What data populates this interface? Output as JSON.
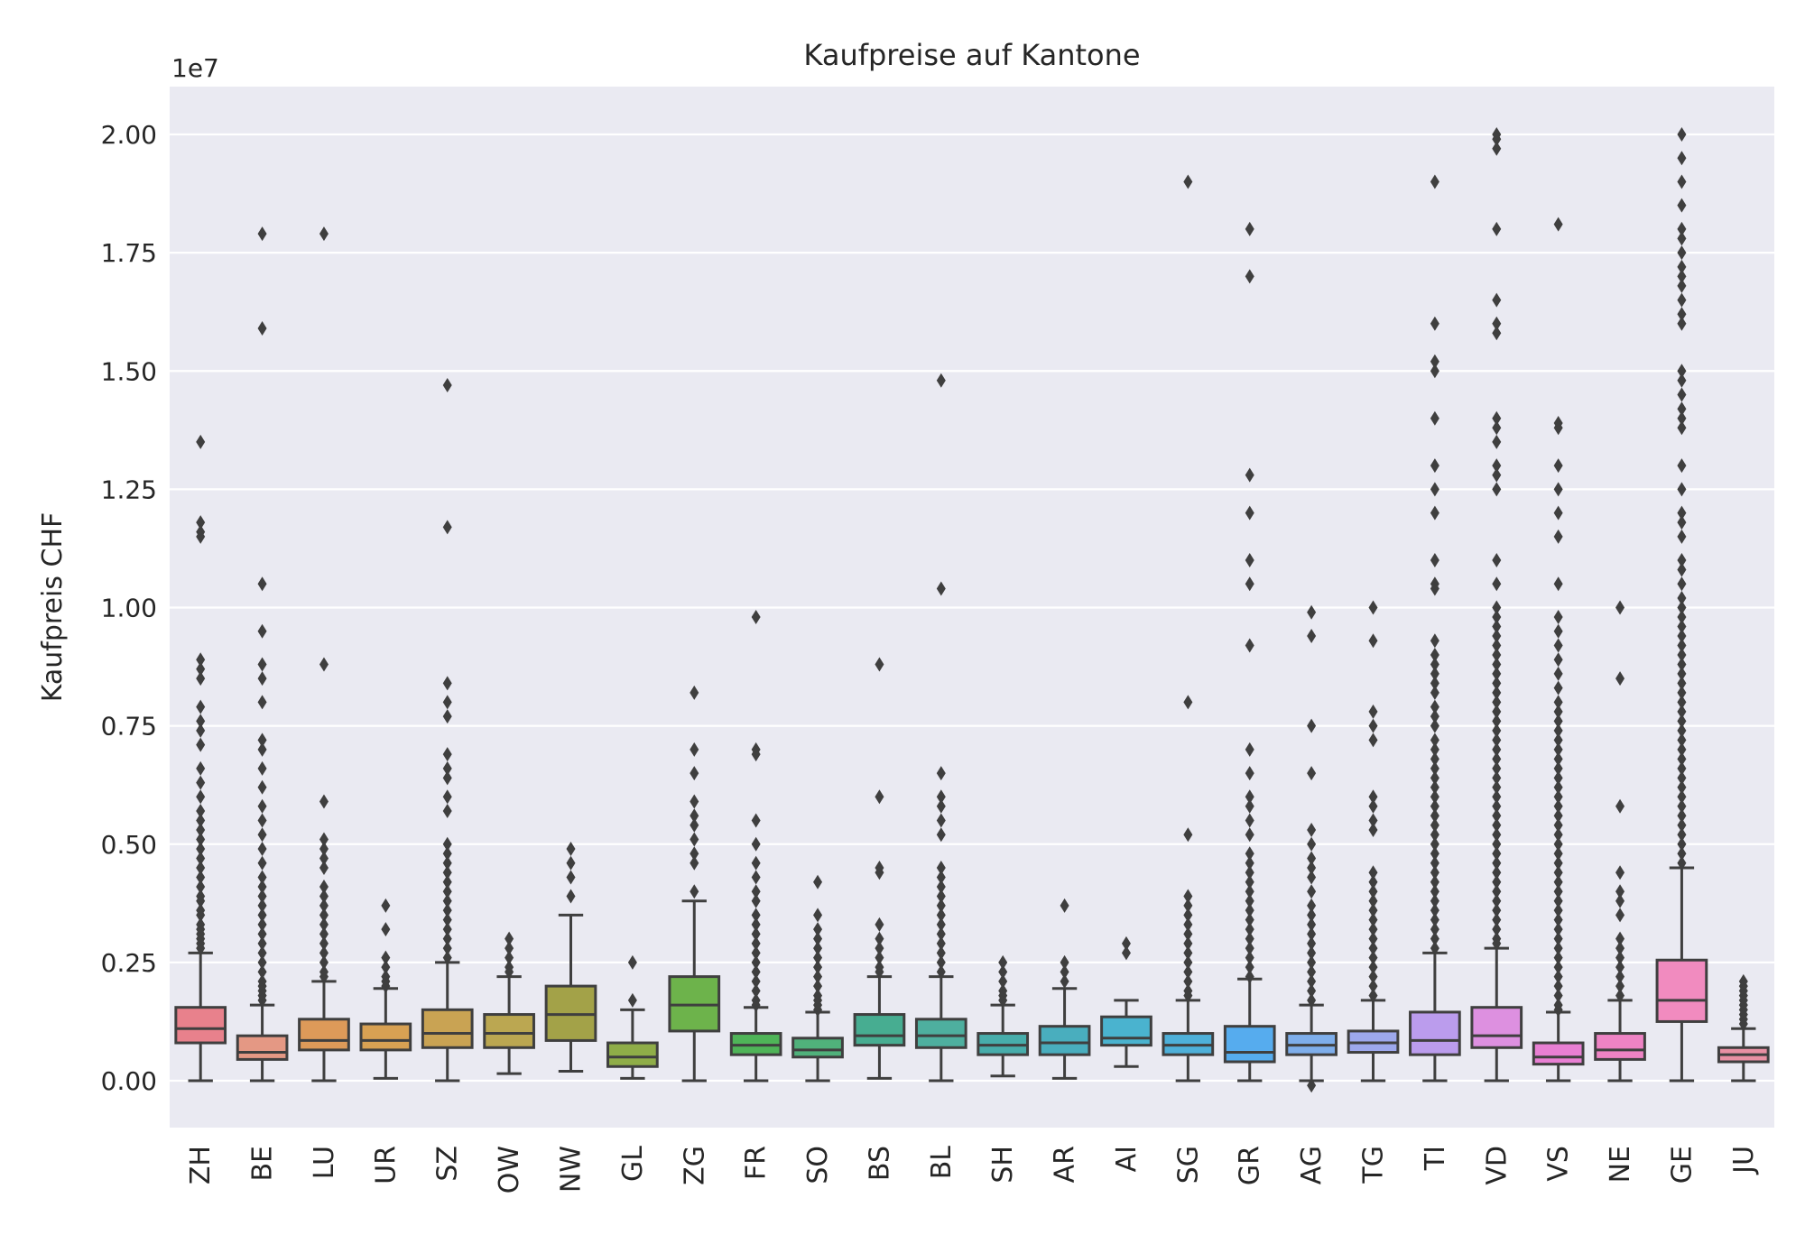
{
  "chart_data": {
    "type": "box",
    "title": "Kaufpreise auf Kantone",
    "ylabel": "Kaufpreis CHF",
    "xlabel": "",
    "offset_label": "1e7",
    "ylim": [
      -0.1,
      2.1
    ],
    "yticks": [
      0.0,
      0.25,
      0.5,
      0.75,
      1.0,
      1.25,
      1.5,
      1.75,
      2.0
    ],
    "ytick_labels": [
      "0.00",
      "0.25",
      "0.50",
      "0.75",
      "1.00",
      "1.25",
      "1.50",
      "1.75",
      "2.00"
    ],
    "grid": true,
    "legend": "none",
    "categories": [
      "ZH",
      "BE",
      "LU",
      "UR",
      "SZ",
      "OW",
      "NW",
      "GL",
      "ZG",
      "FR",
      "SO",
      "BS",
      "BL",
      "SH",
      "AR",
      "AI",
      "SG",
      "GR",
      "AG",
      "TG",
      "TI",
      "VD",
      "VS",
      "NE",
      "GE",
      "JU"
    ],
    "colors": [
      "#e8818c",
      "#e49884",
      "#dd9a59",
      "#d8a153",
      "#c9a353",
      "#bba751",
      "#a3a248",
      "#8fad48",
      "#6db34b",
      "#4fb458",
      "#50b17b",
      "#47ad91",
      "#4eaf9f",
      "#47adab",
      "#49aebe",
      "#4ab3cf",
      "#4eb0d9",
      "#56acee",
      "#7eaeeb",
      "#9da8ec",
      "#bb9ced",
      "#dd90e0",
      "#e87fd3",
      "#ee83c4",
      "#f18bbf",
      "#e890a3"
    ],
    "boxes": [
      {
        "q1": 0.08,
        "median": 0.11,
        "q3": 0.155,
        "whisker_low": 0.0,
        "whisker_high": 0.27,
        "outliers": [
          1.35,
          1.18,
          1.16,
          1.15,
          0.89,
          0.87,
          0.85,
          0.79,
          0.76,
          0.74,
          0.71,
          0.66,
          0.63,
          0.6,
          0.57,
          0.55,
          0.53,
          0.51,
          0.49,
          0.47,
          0.45,
          0.43,
          0.41,
          0.39,
          0.38,
          0.36,
          0.35,
          0.33,
          0.32,
          0.31,
          0.3,
          0.29,
          0.28
        ]
      },
      {
        "q1": 0.045,
        "median": 0.06,
        "q3": 0.095,
        "whisker_low": 0.0,
        "whisker_high": 0.16,
        "outliers": [
          1.79,
          1.59,
          1.05,
          0.95,
          0.88,
          0.85,
          0.8,
          0.72,
          0.7,
          0.66,
          0.62,
          0.58,
          0.55,
          0.52,
          0.49,
          0.46,
          0.43,
          0.41,
          0.39,
          0.37,
          0.35,
          0.33,
          0.31,
          0.29,
          0.27,
          0.25,
          0.23,
          0.21,
          0.2,
          0.19,
          0.18,
          0.17
        ]
      },
      {
        "q1": 0.065,
        "median": 0.085,
        "q3": 0.13,
        "whisker_low": 0.0,
        "whisker_high": 0.21,
        "outliers": [
          1.79,
          0.88,
          0.59,
          0.51,
          0.49,
          0.47,
          0.45,
          0.41,
          0.39,
          0.37,
          0.35,
          0.33,
          0.31,
          0.29,
          0.27,
          0.25,
          0.23,
          0.22
        ]
      },
      {
        "q1": 0.065,
        "median": 0.085,
        "q3": 0.12,
        "whisker_low": 0.005,
        "whisker_high": 0.195,
        "outliers": [
          0.37,
          0.32,
          0.26,
          0.24,
          0.22,
          0.21,
          0.2
        ]
      },
      {
        "q1": 0.07,
        "median": 0.1,
        "q3": 0.15,
        "whisker_low": 0.0,
        "whisker_high": 0.25,
        "outliers": [
          1.47,
          1.17,
          0.84,
          0.8,
          0.77,
          0.69,
          0.66,
          0.64,
          0.6,
          0.57,
          0.5,
          0.48,
          0.46,
          0.44,
          0.42,
          0.4,
          0.38,
          0.36,
          0.34,
          0.32,
          0.3,
          0.28,
          0.26
        ]
      },
      {
        "q1": 0.07,
        "median": 0.1,
        "q3": 0.14,
        "whisker_low": 0.015,
        "whisker_high": 0.22,
        "outliers": [
          0.3,
          0.28,
          0.26,
          0.24,
          0.23
        ]
      },
      {
        "q1": 0.085,
        "median": 0.14,
        "q3": 0.2,
        "whisker_low": 0.02,
        "whisker_high": 0.35,
        "outliers": [
          0.49,
          0.46,
          0.43,
          0.39
        ]
      },
      {
        "q1": 0.03,
        "median": 0.05,
        "q3": 0.08,
        "whisker_low": 0.005,
        "whisker_high": 0.15,
        "outliers": [
          0.25,
          0.17
        ]
      },
      {
        "q1": 0.105,
        "median": 0.16,
        "q3": 0.22,
        "whisker_low": 0.0,
        "whisker_high": 0.38,
        "outliers": [
          0.82,
          0.7,
          0.65,
          0.59,
          0.56,
          0.54,
          0.51,
          0.48,
          0.46,
          0.4
        ]
      },
      {
        "q1": 0.055,
        "median": 0.075,
        "q3": 0.1,
        "whisker_low": 0.0,
        "whisker_high": 0.155,
        "outliers": [
          0.98,
          0.7,
          0.69,
          0.55,
          0.5,
          0.46,
          0.43,
          0.4,
          0.38,
          0.35,
          0.33,
          0.31,
          0.29,
          0.27,
          0.25,
          0.23,
          0.21,
          0.19,
          0.17,
          0.16
        ]
      },
      {
        "q1": 0.05,
        "median": 0.065,
        "q3": 0.09,
        "whisker_low": 0.0,
        "whisker_high": 0.145,
        "outliers": [
          0.42,
          0.35,
          0.32,
          0.3,
          0.28,
          0.26,
          0.24,
          0.22,
          0.2,
          0.18,
          0.17,
          0.16,
          0.15
        ]
      },
      {
        "q1": 0.075,
        "median": 0.095,
        "q3": 0.14,
        "whisker_low": 0.005,
        "whisker_high": 0.22,
        "outliers": [
          0.88,
          0.6,
          0.45,
          0.44,
          0.33,
          0.3,
          0.28,
          0.26,
          0.24,
          0.23
        ]
      },
      {
        "q1": 0.07,
        "median": 0.095,
        "q3": 0.13,
        "whisker_low": 0.0,
        "whisker_high": 0.22,
        "outliers": [
          1.48,
          1.04,
          0.65,
          0.6,
          0.58,
          0.55,
          0.52,
          0.45,
          0.43,
          0.41,
          0.39,
          0.37,
          0.35,
          0.33,
          0.31,
          0.29,
          0.27,
          0.25,
          0.23
        ]
      },
      {
        "q1": 0.055,
        "median": 0.075,
        "q3": 0.1,
        "whisker_low": 0.01,
        "whisker_high": 0.16,
        "outliers": [
          0.25,
          0.23,
          0.21,
          0.19,
          0.18,
          0.17
        ]
      },
      {
        "q1": 0.055,
        "median": 0.08,
        "q3": 0.115,
        "whisker_low": 0.005,
        "whisker_high": 0.195,
        "outliers": [
          0.37,
          0.25,
          0.23,
          0.21
        ]
      },
      {
        "q1": 0.075,
        "median": 0.09,
        "q3": 0.135,
        "whisker_low": 0.03,
        "whisker_high": 0.17,
        "outliers": [
          0.29,
          0.27
        ]
      },
      {
        "q1": 0.055,
        "median": 0.075,
        "q3": 0.1,
        "whisker_low": 0.0,
        "whisker_high": 0.17,
        "outliers": [
          1.9,
          0.8,
          0.52,
          0.39,
          0.37,
          0.35,
          0.33,
          0.31,
          0.29,
          0.27,
          0.25,
          0.23,
          0.21,
          0.19,
          0.18
        ]
      },
      {
        "q1": 0.04,
        "median": 0.06,
        "q3": 0.115,
        "whisker_low": 0.0,
        "whisker_high": 0.215,
        "outliers": [
          1.8,
          1.7,
          1.28,
          1.2,
          1.1,
          1.05,
          0.92,
          0.7,
          0.65,
          0.6,
          0.58,
          0.55,
          0.52,
          0.48,
          0.46,
          0.44,
          0.42,
          0.4,
          0.38,
          0.36,
          0.34,
          0.32,
          0.3,
          0.28,
          0.26,
          0.24,
          0.22
        ]
      },
      {
        "q1": 0.055,
        "median": 0.075,
        "q3": 0.1,
        "whisker_low": 0.0,
        "whisker_high": 0.16,
        "outliers": [
          0.99,
          0.94,
          0.75,
          0.65,
          0.53,
          0.5,
          0.47,
          0.45,
          0.43,
          0.4,
          0.37,
          0.35,
          0.33,
          0.31,
          0.29,
          0.27,
          0.25,
          0.23,
          0.21,
          0.19,
          0.17,
          -0.01
        ]
      },
      {
        "q1": 0.06,
        "median": 0.08,
        "q3": 0.105,
        "whisker_low": 0.0,
        "whisker_high": 0.17,
        "outliers": [
          1.0,
          0.93,
          0.78,
          0.75,
          0.72,
          0.6,
          0.58,
          0.55,
          0.53,
          0.44,
          0.42,
          0.4,
          0.38,
          0.36,
          0.34,
          0.32,
          0.3,
          0.28,
          0.26,
          0.24,
          0.22,
          0.2,
          0.18
        ]
      },
      {
        "q1": 0.055,
        "median": 0.085,
        "q3": 0.145,
        "whisker_low": 0.0,
        "whisker_high": 0.27,
        "outliers": [
          1.9,
          1.6,
          1.52,
          1.5,
          1.4,
          1.3,
          1.25,
          1.2,
          1.1,
          1.05,
          1.04,
          0.93,
          0.9,
          0.88,
          0.86,
          0.84,
          0.82,
          0.79,
          0.77,
          0.75,
          0.72,
          0.7,
          0.68,
          0.66,
          0.64,
          0.62,
          0.6,
          0.58,
          0.56,
          0.54,
          0.52,
          0.5,
          0.48,
          0.46,
          0.44,
          0.42,
          0.4,
          0.38,
          0.36,
          0.34,
          0.32,
          0.3,
          0.28
        ]
      },
      {
        "q1": 0.07,
        "median": 0.095,
        "q3": 0.155,
        "whisker_low": 0.0,
        "whisker_high": 0.28,
        "outliers": [
          2.0,
          1.99,
          1.97,
          1.8,
          1.65,
          1.6,
          1.58,
          1.4,
          1.38,
          1.35,
          1.3,
          1.28,
          1.25,
          1.1,
          1.05,
          1.0,
          0.98,
          0.96,
          0.94,
          0.92,
          0.9,
          0.88,
          0.86,
          0.84,
          0.82,
          0.8,
          0.78,
          0.76,
          0.74,
          0.72,
          0.7,
          0.68,
          0.66,
          0.64,
          0.62,
          0.6,
          0.58,
          0.56,
          0.54,
          0.52,
          0.5,
          0.48,
          0.46,
          0.44,
          0.42,
          0.4,
          0.38,
          0.36,
          0.34,
          0.32,
          0.3,
          0.29
        ]
      },
      {
        "q1": 0.035,
        "median": 0.05,
        "q3": 0.08,
        "whisker_low": 0.0,
        "whisker_high": 0.145,
        "outliers": [
          1.81,
          1.39,
          1.38,
          1.3,
          1.25,
          1.2,
          1.15,
          1.05,
          0.98,
          0.95,
          0.92,
          0.89,
          0.86,
          0.83,
          0.8,
          0.78,
          0.76,
          0.74,
          0.72,
          0.7,
          0.68,
          0.66,
          0.64,
          0.62,
          0.6,
          0.58,
          0.56,
          0.54,
          0.52,
          0.5,
          0.48,
          0.46,
          0.44,
          0.42,
          0.4,
          0.38,
          0.36,
          0.34,
          0.32,
          0.3,
          0.28,
          0.26,
          0.24,
          0.22,
          0.2,
          0.18,
          0.16,
          0.15
        ]
      },
      {
        "q1": 0.045,
        "median": 0.065,
        "q3": 0.1,
        "whisker_low": 0.0,
        "whisker_high": 0.17,
        "outliers": [
          1.0,
          0.85,
          0.58,
          0.44,
          0.4,
          0.38,
          0.35,
          0.3,
          0.28,
          0.26,
          0.24,
          0.22,
          0.2,
          0.18
        ]
      },
      {
        "q1": 0.125,
        "median": 0.17,
        "q3": 0.255,
        "whisker_low": 0.0,
        "whisker_high": 0.45,
        "outliers": [
          2.0,
          1.95,
          1.9,
          1.85,
          1.8,
          1.78,
          1.75,
          1.72,
          1.7,
          1.68,
          1.65,
          1.62,
          1.6,
          1.5,
          1.48,
          1.45,
          1.42,
          1.4,
          1.38,
          1.3,
          1.25,
          1.2,
          1.18,
          1.15,
          1.1,
          1.08,
          1.05,
          1.02,
          1.0,
          0.98,
          0.96,
          0.94,
          0.92,
          0.9,
          0.88,
          0.86,
          0.84,
          0.82,
          0.8,
          0.78,
          0.76,
          0.74,
          0.72,
          0.7,
          0.68,
          0.66,
          0.64,
          0.62,
          0.6,
          0.58,
          0.56,
          0.54,
          0.52,
          0.5,
          0.48,
          0.46
        ]
      },
      {
        "q1": 0.04,
        "median": 0.055,
        "q3": 0.07,
        "whisker_low": 0.0,
        "whisker_high": 0.11,
        "outliers": [
          0.21,
          0.2,
          0.19,
          0.18,
          0.17,
          0.16,
          0.15,
          0.14,
          0.13,
          0.12
        ]
      }
    ]
  }
}
